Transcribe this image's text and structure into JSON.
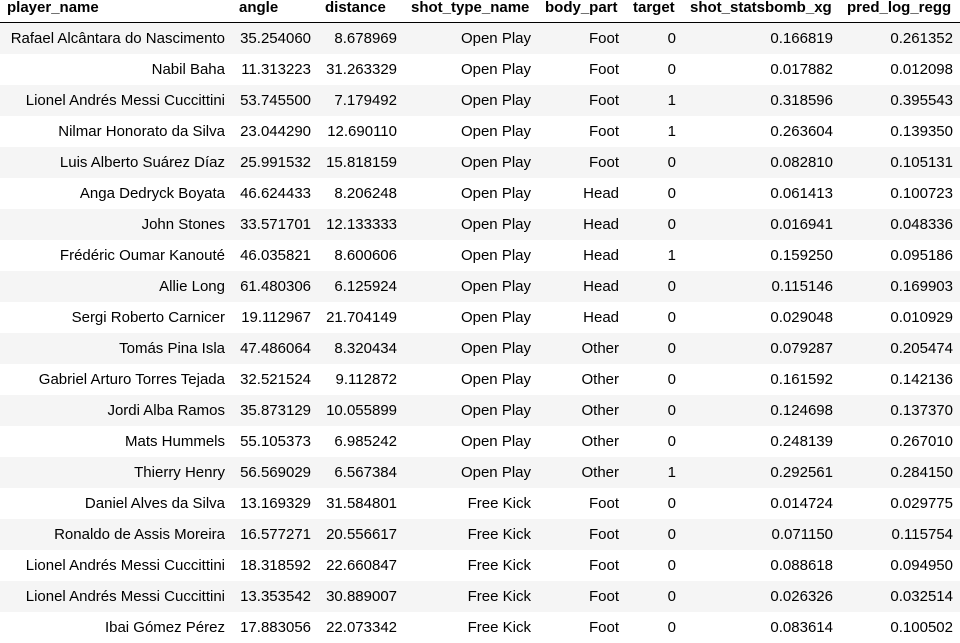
{
  "table": {
    "columns": [
      "player_name",
      "angle",
      "distance",
      "shot_type_name",
      "body_part",
      "target",
      "shot_statsbomb_xg",
      "pred_log_regg"
    ],
    "rows": [
      [
        "Rafael Alcântara do Nascimento",
        "35.254060",
        "8.678969",
        "Open Play",
        "Foot",
        "0",
        "0.166819",
        "0.261352"
      ],
      [
        "Nabil Baha",
        "11.313223",
        "31.263329",
        "Open Play",
        "Foot",
        "0",
        "0.017882",
        "0.012098"
      ],
      [
        "Lionel Andrés Messi Cuccittini",
        "53.745500",
        "7.179492",
        "Open Play",
        "Foot",
        "1",
        "0.318596",
        "0.395543"
      ],
      [
        "Nilmar Honorato da Silva",
        "23.044290",
        "12.690110",
        "Open Play",
        "Foot",
        "1",
        "0.263604",
        "0.139350"
      ],
      [
        "Luis Alberto Suárez Díaz",
        "25.991532",
        "15.818159",
        "Open Play",
        "Foot",
        "0",
        "0.082810",
        "0.105131"
      ],
      [
        "Anga Dedryck Boyata",
        "46.624433",
        "8.206248",
        "Open Play",
        "Head",
        "0",
        "0.061413",
        "0.100723"
      ],
      [
        "John Stones",
        "33.571701",
        "12.133333",
        "Open Play",
        "Head",
        "0",
        "0.016941",
        "0.048336"
      ],
      [
        "Frédéric Oumar Kanouté",
        "46.035821",
        "8.600606",
        "Open Play",
        "Head",
        "1",
        "0.159250",
        "0.095186"
      ],
      [
        "Allie Long",
        "61.480306",
        "6.125924",
        "Open Play",
        "Head",
        "0",
        "0.115146",
        "0.169903"
      ],
      [
        "Sergi Roberto Carnicer",
        "19.112967",
        "21.704149",
        "Open Play",
        "Head",
        "0",
        "0.029048",
        "0.010929"
      ],
      [
        "Tomás Pina Isla",
        "47.486064",
        "8.320434",
        "Open Play",
        "Other",
        "0",
        "0.079287",
        "0.205474"
      ],
      [
        "Gabriel Arturo Torres Tejada",
        "32.521524",
        "9.112872",
        "Open Play",
        "Other",
        "0",
        "0.161592",
        "0.142136"
      ],
      [
        "Jordi Alba Ramos",
        "35.873129",
        "10.055899",
        "Open Play",
        "Other",
        "0",
        "0.124698",
        "0.137370"
      ],
      [
        "Mats Hummels",
        "55.105373",
        "6.985242",
        "Open Play",
        "Other",
        "0",
        "0.248139",
        "0.267010"
      ],
      [
        "Thierry Henry",
        "56.569029",
        "6.567384",
        "Open Play",
        "Other",
        "1",
        "0.292561",
        "0.284150"
      ],
      [
        "Daniel Alves da Silva",
        "13.169329",
        "31.584801",
        "Free Kick",
        "Foot",
        "0",
        "0.014724",
        "0.029775"
      ],
      [
        "Ronaldo de Assis Moreira",
        "16.577271",
        "20.556617",
        "Free Kick",
        "Foot",
        "0",
        "0.071150",
        "0.115754"
      ],
      [
        "Lionel Andrés Messi Cuccittini",
        "18.318592",
        "22.660847",
        "Free Kick",
        "Foot",
        "0",
        "0.088618",
        "0.094950"
      ],
      [
        "Lionel Andrés Messi Cuccittini",
        "13.353542",
        "30.889007",
        "Free Kick",
        "Foot",
        "0",
        "0.026326",
        "0.032514"
      ],
      [
        "Ibai Gómez Pérez",
        "17.883056",
        "22.073342",
        "Free Kick",
        "Foot",
        "0",
        "0.083614",
        "0.100502"
      ]
    ]
  }
}
